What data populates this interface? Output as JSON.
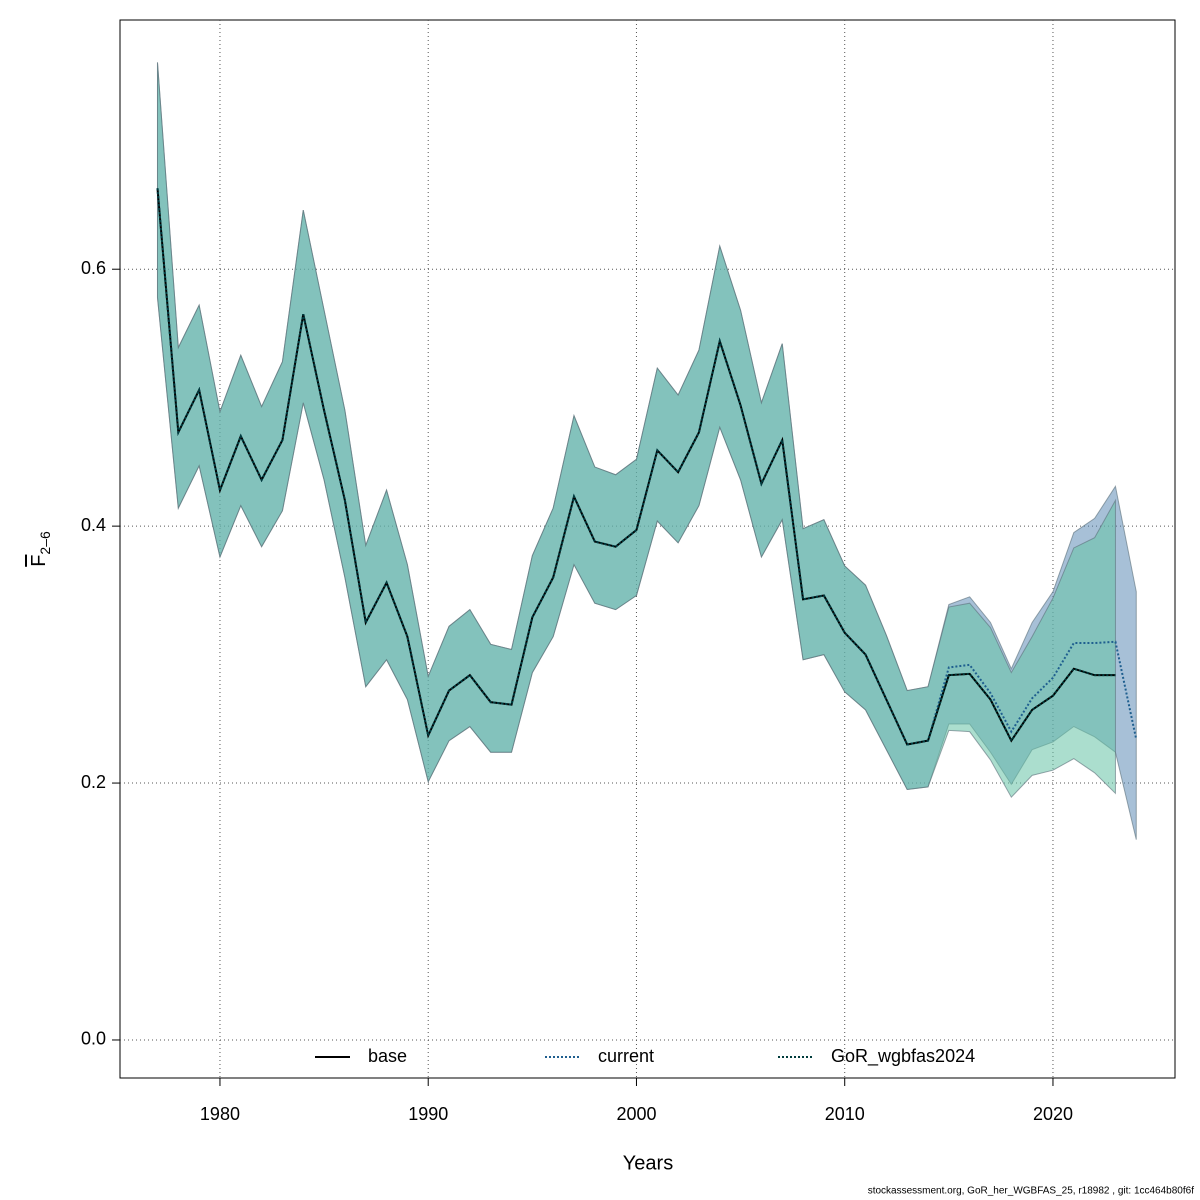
{
  "chart_data": {
    "type": "line",
    "xlabel": "Years",
    "ylabel": "F",
    "ylabel_sub": "2–6",
    "footnote": "stockassessment.org, GoR_her_WGBFAS_25, r18982 , git: 1cc464b80f6f",
    "x": [
      1977,
      1978,
      1979,
      1980,
      1981,
      1982,
      1983,
      1984,
      1985,
      1986,
      1987,
      1988,
      1989,
      1990,
      1991,
      1992,
      1993,
      1994,
      1995,
      1996,
      1997,
      1998,
      1999,
      2000,
      2001,
      2002,
      2003,
      2004,
      2005,
      2006,
      2007,
      2008,
      2009,
      2010,
      2011,
      2012,
      2013,
      2014,
      2015,
      2016,
      2017,
      2018,
      2019,
      2020,
      2021,
      2022,
      2023,
      2024
    ],
    "xlim": [
      1975.2,
      2025.86
    ],
    "xticks": [
      1980,
      1990,
      2000,
      2010,
      2020
    ],
    "ylim": [
      -0.0296,
      0.794
    ],
    "yticks": [
      {
        "value": 0,
        "label": "0.0"
      },
      0.2,
      0.4,
      0.6
    ],
    "grid": true,
    "legend": "bottom",
    "series": [
      {
        "name": "base",
        "color": "#000000",
        "dash": false,
        "band_color": "rgba(102,194,165,0.55)",
        "values": [
          0.663,
          0.473,
          0.506,
          0.428,
          0.47,
          0.436,
          0.467,
          0.565,
          0.49,
          0.42,
          0.325,
          0.356,
          0.314,
          0.237,
          0.272,
          0.284,
          0.263,
          0.261,
          0.329,
          0.36,
          0.423,
          0.388,
          0.384,
          0.397,
          0.459,
          0.442,
          0.473,
          0.544,
          0.494,
          0.433,
          0.467,
          0.343,
          0.346,
          0.317,
          0.3,
          0.265,
          0.23,
          0.233,
          0.284,
          0.285,
          0.265,
          0.233,
          0.257,
          0.268,
          0.289,
          0.284,
          0.284,
          null
        ],
        "upper": [
          0.761,
          0.539,
          0.572,
          0.489,
          0.533,
          0.493,
          0.528,
          0.646,
          0.568,
          0.49,
          0.385,
          0.428,
          0.37,
          0.283,
          0.322,
          0.335,
          0.308,
          0.304,
          0.377,
          0.414,
          0.486,
          0.446,
          0.44,
          0.452,
          0.523,
          0.502,
          0.537,
          0.618,
          0.568,
          0.496,
          0.542,
          0.398,
          0.405,
          0.369,
          0.354,
          0.315,
          0.272,
          0.275,
          0.337,
          0.34,
          0.321,
          0.286,
          0.314,
          0.344,
          0.383,
          0.391,
          0.42,
          null
        ],
        "lower": [
          0.578,
          0.414,
          0.447,
          0.376,
          0.416,
          0.384,
          0.412,
          0.496,
          0.436,
          0.36,
          0.275,
          0.296,
          0.265,
          0.201,
          0.233,
          0.244,
          0.224,
          0.224,
          0.286,
          0.314,
          0.37,
          0.34,
          0.335,
          0.346,
          0.404,
          0.387,
          0.416,
          0.477,
          0.436,
          0.376,
          0.405,
          0.296,
          0.3,
          0.271,
          0.257,
          0.226,
          0.195,
          0.197,
          0.241,
          0.24,
          0.218,
          0.189,
          0.206,
          0.21,
          0.219,
          0.208,
          0.192,
          null
        ]
      },
      {
        "name": "current",
        "color": "#1f5f8f",
        "dash": true,
        "band_color": "rgba(80,130,175,0.5)",
        "values": [
          0.663,
          0.473,
          0.506,
          0.428,
          0.47,
          0.436,
          0.467,
          0.565,
          0.49,
          0.42,
          0.325,
          0.356,
          0.314,
          0.237,
          0.272,
          0.284,
          0.263,
          0.261,
          0.329,
          0.36,
          0.423,
          0.388,
          0.384,
          0.397,
          0.459,
          0.442,
          0.473,
          0.544,
          0.494,
          0.433,
          0.467,
          0.343,
          0.346,
          0.317,
          0.3,
          0.265,
          0.23,
          0.233,
          0.29,
          0.292,
          0.27,
          0.24,
          0.266,
          0.282,
          0.309,
          0.309,
          0.31,
          0.234
        ],
        "upper": [
          0.761,
          0.539,
          0.572,
          0.489,
          0.533,
          0.493,
          0.528,
          0.646,
          0.568,
          0.49,
          0.385,
          0.428,
          0.37,
          0.283,
          0.322,
          0.335,
          0.308,
          0.304,
          0.377,
          0.414,
          0.486,
          0.446,
          0.44,
          0.452,
          0.523,
          0.502,
          0.537,
          0.618,
          0.568,
          0.496,
          0.542,
          0.398,
          0.405,
          0.369,
          0.354,
          0.315,
          0.272,
          0.275,
          0.339,
          0.345,
          0.325,
          0.289,
          0.325,
          0.349,
          0.395,
          0.406,
          0.431,
          0.349
        ],
        "lower": [
          0.578,
          0.414,
          0.447,
          0.376,
          0.416,
          0.384,
          0.412,
          0.496,
          0.436,
          0.36,
          0.275,
          0.296,
          0.265,
          0.201,
          0.233,
          0.244,
          0.224,
          0.224,
          0.286,
          0.314,
          0.37,
          0.34,
          0.335,
          0.346,
          0.404,
          0.387,
          0.416,
          0.477,
          0.436,
          0.376,
          0.405,
          0.296,
          0.3,
          0.271,
          0.257,
          0.226,
          0.195,
          0.197,
          0.246,
          0.246,
          0.224,
          0.199,
          0.226,
          0.232,
          0.244,
          0.236,
          0.224,
          0.156
        ]
      },
      {
        "name": "GoR_wgbfas2024",
        "color": "#003c3c",
        "dash": true,
        "values": [
          0.663,
          0.473,
          0.506,
          0.428,
          0.47,
          0.436,
          0.467,
          0.565,
          0.49,
          0.42,
          0.325,
          0.356,
          0.314,
          0.237,
          0.272,
          0.284,
          0.263,
          0.261,
          0.329,
          0.36,
          0.423,
          0.388,
          0.384,
          0.397,
          0.459,
          0.442,
          0.473,
          0.544,
          0.494,
          0.433,
          0.467,
          0.343,
          0.346,
          0.317,
          0.3,
          0.265,
          0.23,
          0.233,
          0.284,
          0.285,
          0.265,
          0.233,
          0.257,
          0.268,
          0.289,
          0.284,
          0.284,
          null
        ]
      }
    ]
  }
}
